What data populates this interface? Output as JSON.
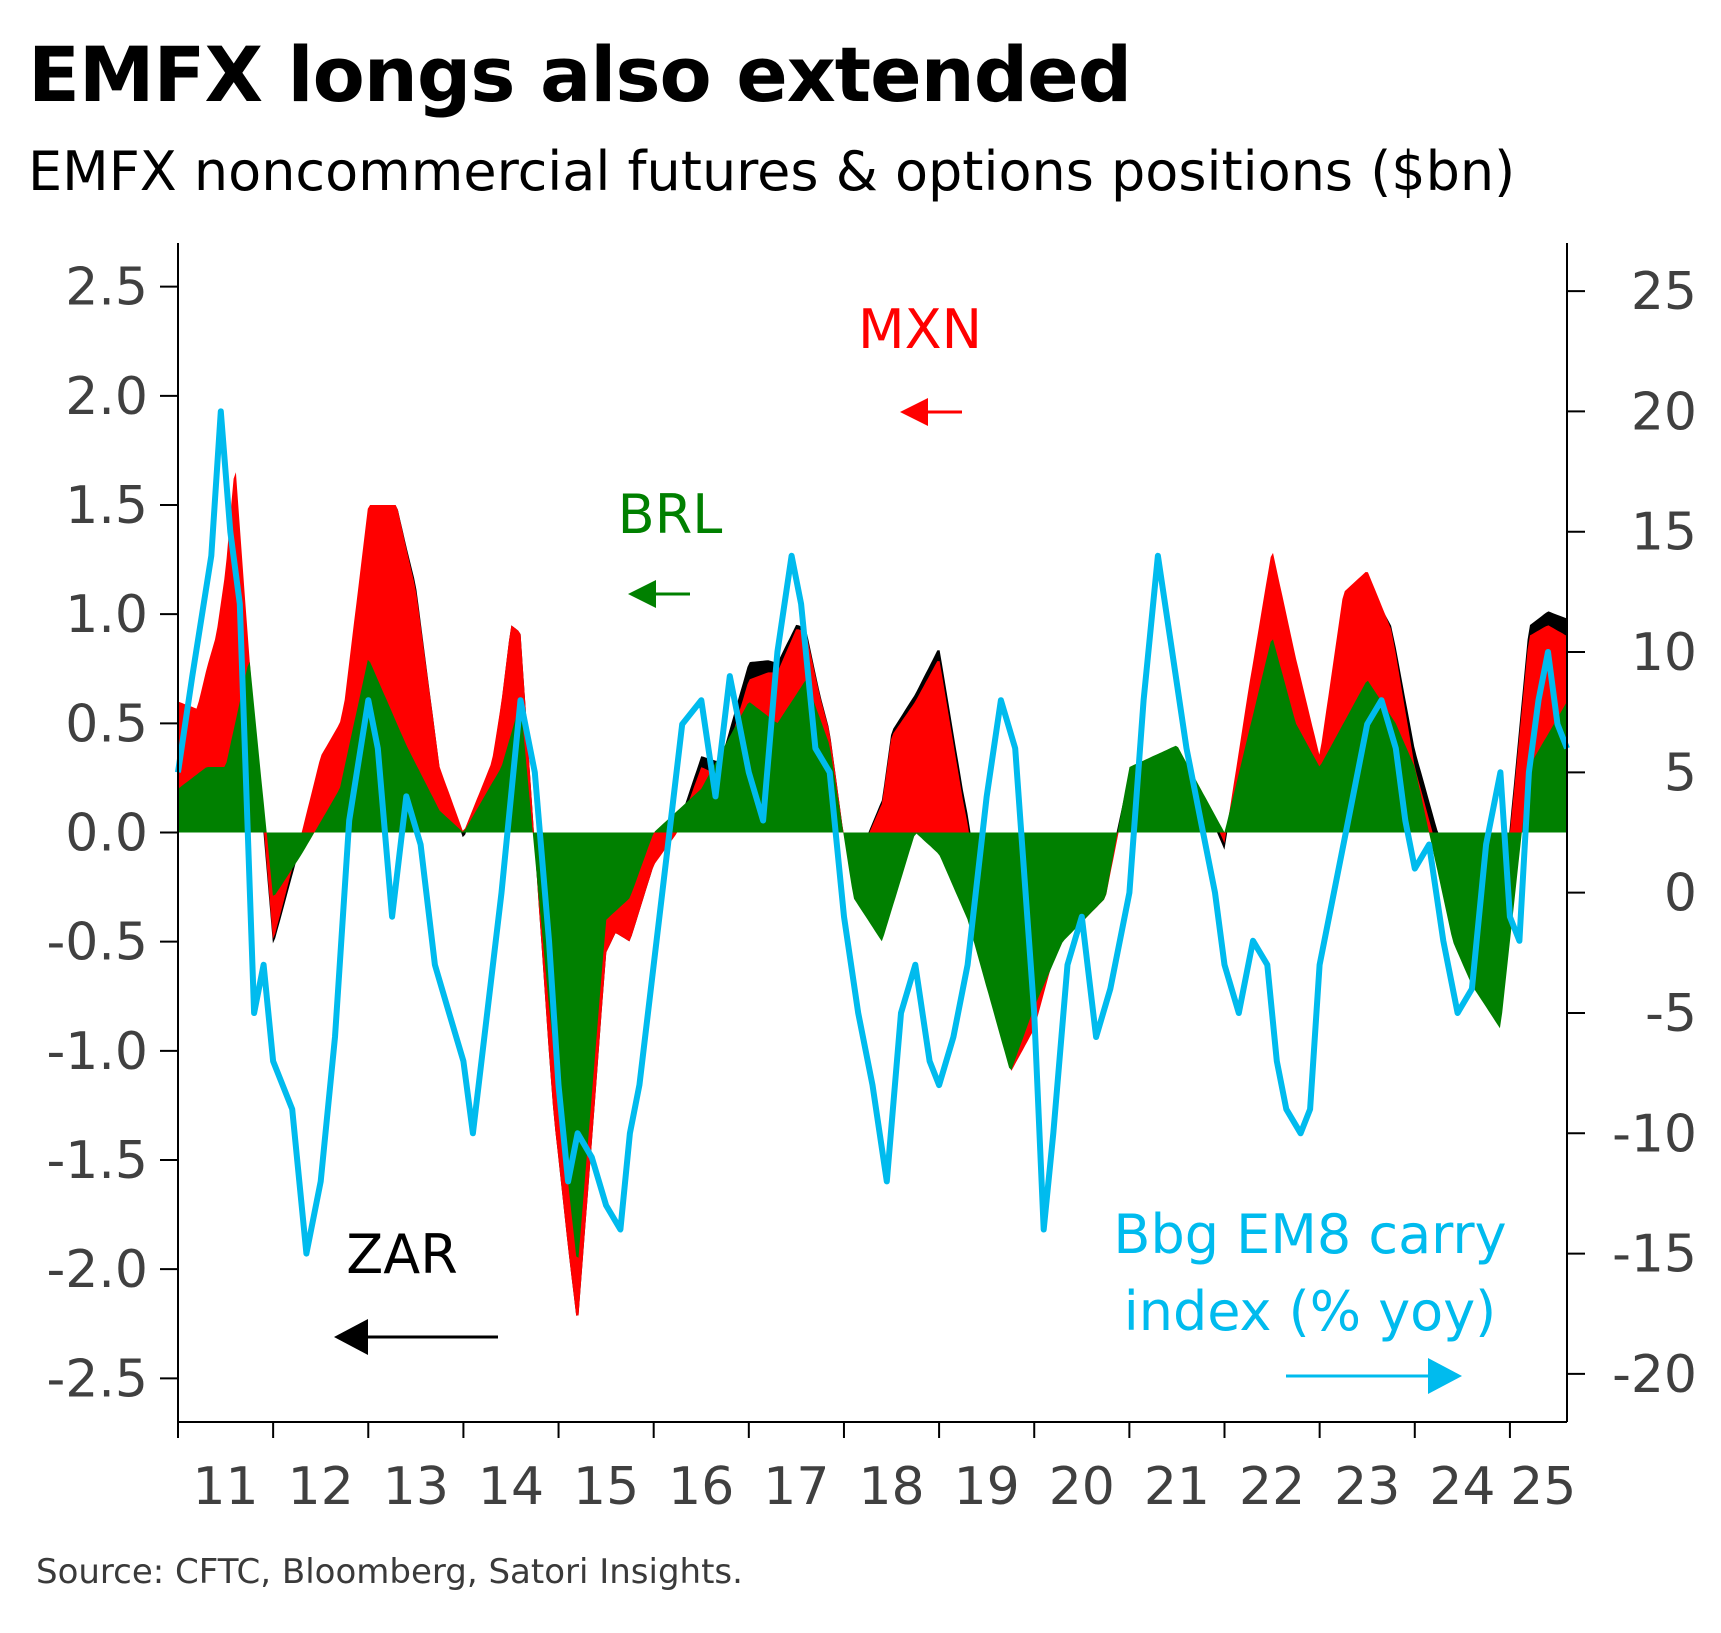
{
  "title": "EMFX longs also extended",
  "subtitle": "EMFX noncommercial futures & options positions ($bn)",
  "source": "Source: CFTC, Bloomberg, Satori Insights.",
  "colors": {
    "MXN": "#ff0000",
    "BRL": "#008000",
    "ZAR": "#000000",
    "carry": "#00bbee",
    "axis": "#000000",
    "tick_text": "#404040"
  },
  "chart_data": {
    "type": "area",
    "xlabel": "",
    "x_ticks": [
      "11",
      "12",
      "13",
      "14",
      "15",
      "16",
      "17",
      "18",
      "19",
      "20",
      "21",
      "22",
      "23",
      "24",
      "25"
    ],
    "x_range": [
      2011.0,
      2025.6
    ],
    "y_left": {
      "label": "",
      "range": [
        -2.7,
        2.7
      ],
      "ticks": [
        "2.5",
        "2.0",
        "1.5",
        "1.0",
        "0.5",
        "0.0",
        "-0.5",
        "-1.0",
        "-1.5",
        "-2.0",
        "-2.5"
      ]
    },
    "y_right": {
      "label": "",
      "range": [
        -22,
        27
      ],
      "ticks": [
        "25",
        "20",
        "15",
        "10",
        "5",
        "0",
        "-5",
        "-10",
        "-15",
        "-20"
      ]
    },
    "series": [
      {
        "name": "ZAR",
        "axis": "left",
        "kind": "stacked-area",
        "x": [
          2011.0,
          2011.5,
          2011.75,
          2012.0,
          2012.5,
          2013.0,
          2013.5,
          2014.0,
          2014.5,
          2015.0,
          2015.5,
          2016.0,
          2016.5,
          2017.0,
          2017.5,
          2018.0,
          2018.5,
          2019.0,
          2019.5,
          2020.0,
          2020.5,
          2021.0,
          2021.5,
          2022.0,
          2022.5,
          2023.0,
          2023.5,
          2024.0,
          2024.5,
          2025.0,
          2025.6
        ],
        "values": [
          -0.05,
          -0.05,
          -0.05,
          -0.02,
          -0.05,
          -0.03,
          0.02,
          -0.03,
          0.0,
          0.0,
          0.0,
          0.0,
          0.05,
          0.08,
          0.02,
          0.0,
          0.02,
          0.05,
          0.04,
          0.05,
          0.12,
          0.02,
          -0.02,
          -0.03,
          -0.02,
          -0.05,
          -0.05,
          0.08,
          0.1,
          0.03,
          0.08
        ]
      },
      {
        "name": "BRL",
        "axis": "left",
        "kind": "stacked-area",
        "x": [
          2011.0,
          2011.3,
          2011.5,
          2011.75,
          2012.0,
          2012.3,
          2012.7,
          2013.0,
          2013.4,
          2013.75,
          2014.0,
          2014.4,
          2014.6,
          2014.9,
          2015.2,
          2015.5,
          2015.75,
          2016.0,
          2016.5,
          2017.0,
          2017.3,
          2017.6,
          2017.85,
          2018.1,
          2018.4,
          2018.75,
          2019.0,
          2019.3,
          2019.75,
          2020.0,
          2020.3,
          2020.75,
          2021.0,
          2021.5,
          2021.75,
          2022.0,
          2022.5,
          2022.75,
          2023.0,
          2023.5,
          2023.8,
          2024.0,
          2024.4,
          2024.6,
          2024.9,
          2025.2,
          2025.6
        ],
        "values": [
          0.2,
          0.3,
          0.3,
          0.8,
          -0.3,
          -0.1,
          0.2,
          0.8,
          0.4,
          0.1,
          0.0,
          0.3,
          0.6,
          -0.8,
          -2.0,
          -0.4,
          -0.3,
          0.0,
          0.2,
          0.6,
          0.5,
          0.7,
          0.4,
          -0.3,
          -0.5,
          0.0,
          -0.1,
          -0.4,
          -1.1,
          -0.8,
          -0.5,
          -0.3,
          0.3,
          0.4,
          0.2,
          0.0,
          0.9,
          0.5,
          0.3,
          0.7,
          0.5,
          0.3,
          -0.5,
          -0.7,
          -0.9,
          0.3,
          0.6
        ]
      },
      {
        "name": "MXN",
        "axis": "left",
        "kind": "stacked-area",
        "x": [
          2011.0,
          2011.2,
          2011.4,
          2011.6,
          2011.75,
          2012.0,
          2012.2,
          2012.5,
          2012.75,
          2013.0,
          2013.3,
          2013.5,
          2013.75,
          2014.0,
          2014.3,
          2014.5,
          2014.8,
          2014.95,
          2015.1,
          2015.4,
          2015.6,
          2015.75,
          2016.0,
          2016.25,
          2016.5,
          2016.7,
          2017.0,
          2017.2,
          2017.5,
          2017.75,
          2018.0,
          2018.2,
          2018.5,
          2018.75,
          2019.0,
          2019.25,
          2019.5,
          2019.75,
          2020.0,
          2020.25,
          2020.5,
          2020.75,
          2021.0,
          2021.25,
          2021.5,
          2021.75,
          2022.0,
          2022.25,
          2022.5,
          2022.75,
          2023.0,
          2023.25,
          2023.5,
          2023.75,
          2024.0,
          2024.25,
          2024.5,
          2024.75,
          2025.0,
          2025.2,
          2025.4,
          2025.6
        ],
        "values": [
          0.4,
          0.3,
          0.6,
          1.2,
          0.0,
          -0.2,
          0.0,
          0.3,
          0.3,
          0.7,
          1.0,
          0.8,
          0.2,
          0.0,
          0.1,
          0.5,
          -0.05,
          -0.3,
          -0.3,
          -0.2,
          -0.1,
          -0.2,
          -0.15,
          -0.1,
          0.1,
          -0.1,
          0.1,
          0.2,
          0.3,
          0.1,
          0.0,
          0.3,
          0.8,
          0.6,
          0.9,
          0.5,
          0.2,
          0.0,
          -0.1,
          0.05,
          0.0,
          0.0,
          -0.05,
          0.0,
          -0.05,
          0.0,
          -0.05,
          0.2,
          0.4,
          0.3,
          0.05,
          0.6,
          0.5,
          0.4,
          0.0,
          0.1,
          0.5,
          0.3,
          0.5,
          0.6,
          0.5,
          0.3
        ]
      },
      {
        "name": "Bbg EM8 carry index (% yoy)",
        "axis": "right",
        "kind": "line",
        "x": [
          2011.0,
          2011.15,
          2011.35,
          2011.45,
          2011.55,
          2011.65,
          2011.8,
          2011.9,
          2012.0,
          2012.2,
          2012.35,
          2012.5,
          2012.65,
          2012.8,
          2013.0,
          2013.1,
          2013.25,
          2013.4,
          2013.55,
          2013.7,
          2013.85,
          2014.0,
          2014.1,
          2014.25,
          2014.4,
          2014.5,
          2014.6,
          2014.75,
          2014.9,
          2015.0,
          2015.1,
          2015.2,
          2015.35,
          2015.5,
          2015.65,
          2015.75,
          2015.85,
          2016.0,
          2016.15,
          2016.3,
          2016.5,
          2016.65,
          2016.8,
          2017.0,
          2017.15,
          2017.3,
          2017.45,
          2017.55,
          2017.7,
          2017.85,
          2018.0,
          2018.15,
          2018.3,
          2018.45,
          2018.6,
          2018.75,
          2018.9,
          2019.0,
          2019.15,
          2019.3,
          2019.5,
          2019.65,
          2019.8,
          2020.0,
          2020.1,
          2020.2,
          2020.35,
          2020.5,
          2020.65,
          2020.8,
          2021.0,
          2021.15,
          2021.3,
          2021.45,
          2021.6,
          2021.75,
          2021.9,
          2022.0,
          2022.15,
          2022.3,
          2022.45,
          2022.55,
          2022.65,
          2022.8,
          2022.9,
          2023.0,
          2023.15,
          2023.3,
          2023.5,
          2023.65,
          2023.8,
          2023.9,
          2024.0,
          2024.15,
          2024.3,
          2024.45,
          2024.6,
          2024.75,
          2024.9,
          2025.0,
          2025.1,
          2025.2,
          2025.3,
          2025.4,
          2025.5,
          2025.6
        ],
        "values": [
          5,
          9,
          14,
          20,
          15,
          12,
          -5,
          -3,
          -7,
          -9,
          -15,
          -12,
          -6,
          3,
          8,
          6,
          -1,
          4,
          2,
          -3,
          -5,
          -7,
          -10,
          -5,
          0,
          4,
          8,
          5,
          -2,
          -8,
          -12,
          -10,
          -11,
          -13,
          -14,
          -10,
          -8,
          -3,
          2,
          7,
          8,
          4,
          9,
          5,
          3,
          10,
          14,
          12,
          6,
          5,
          -1,
          -5,
          -8,
          -12,
          -5,
          -3,
          -7,
          -8,
          -6,
          -3,
          4,
          8,
          6,
          -5,
          -14,
          -10,
          -3,
          -1,
          -6,
          -4,
          0,
          8,
          14,
          10,
          6,
          3,
          0,
          -3,
          -5,
          -2,
          -3,
          -7,
          -9,
          -10,
          -9,
          -3,
          0,
          3,
          7,
          8,
          6,
          3,
          1,
          2,
          -2,
          -5,
          -4,
          2,
          5,
          -1,
          -2,
          5,
          8,
          10,
          7,
          6
        ]
      }
    ],
    "annotations": [
      {
        "text": "MXN",
        "arrow": "left",
        "color": "#ff0000"
      },
      {
        "text": "BRL",
        "arrow": "left",
        "color": "#008000"
      },
      {
        "text": "ZAR",
        "arrow": "left",
        "color": "#000000"
      },
      {
        "text": "Bbg EM8 carry",
        "text2": "index (% yoy)",
        "arrow": "right",
        "color": "#00bbee"
      }
    ]
  }
}
